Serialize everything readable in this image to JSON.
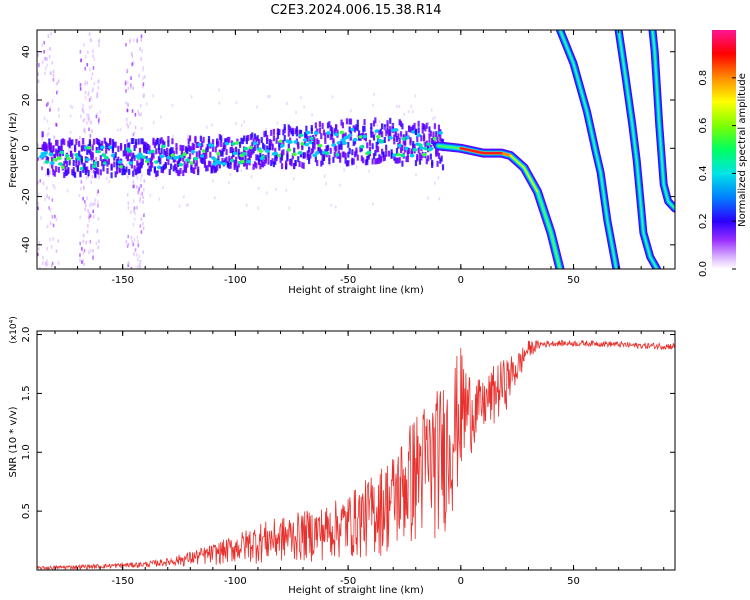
{
  "title": "C2E3.2024.006.15.38.R14",
  "colors": {
    "snr_line": "#e8302c",
    "axis": "#000000",
    "background": "#ffffff"
  },
  "colorbar": {
    "label": "Normalized spectral amplitude",
    "ticks": [
      "0.0",
      "0.2",
      "0.4",
      "0.6",
      "0.8"
    ],
    "tick_values": [
      0.0,
      0.2,
      0.4,
      0.6,
      0.8
    ],
    "range": [
      0,
      1
    ]
  },
  "chart_data": [
    {
      "type": "heatmap",
      "name": "spectrogram",
      "title": "C2E3.2024.006.15.38.R14",
      "xlabel": "Height of straight line (km)",
      "ylabel": "Frequency (Hz)",
      "xlim": [
        -188,
        95
      ],
      "ylim": [
        -50,
        49
      ],
      "xticks": [
        -150,
        -100,
        -50,
        0,
        50
      ],
      "xtick_labels": [
        "-150",
        "-100",
        "-50",
        "0",
        "50"
      ],
      "yticks": [
        -40,
        -20,
        0,
        20,
        40
      ],
      "ytick_labels": [
        "-40",
        "-20",
        "0",
        "20",
        "40"
      ],
      "traces": [
        {
          "name": "main",
          "points": [
            [
              -185,
              -4
            ],
            [
              -150,
              -4
            ],
            [
              -120,
              -3
            ],
            [
              -100,
              -2
            ],
            [
              -80,
              0
            ],
            [
              -60,
              2
            ],
            [
              -40,
              3
            ],
            [
              -20,
              2
            ],
            [
              -10,
              1
            ],
            [
              0,
              0
            ],
            [
              10,
              -2
            ],
            [
              18,
              -2
            ],
            [
              22,
              -3
            ],
            [
              28,
              -8
            ],
            [
              34,
              -18
            ],
            [
              40,
              -35
            ],
            [
              44,
              -50
            ]
          ]
        },
        {
          "name": "fold1",
          "points": [
            [
              44,
              49
            ],
            [
              50,
              35
            ],
            [
              56,
              15
            ],
            [
              60,
              -2
            ],
            [
              62,
              -10
            ],
            [
              65,
              -30
            ],
            [
              69,
              -50
            ]
          ]
        },
        {
          "name": "fold2",
          "points": [
            [
              70,
              49
            ],
            [
              73,
              30
            ],
            [
              76,
              10
            ],
            [
              78,
              -5
            ],
            [
              80,
              -25
            ],
            [
              81,
              -35
            ],
            [
              84,
              -45
            ],
            [
              87,
              -50
            ]
          ]
        },
        {
          "name": "fold3",
          "points": [
            [
              85,
              49
            ],
            [
              86,
              40
            ],
            [
              88,
              10
            ],
            [
              90,
              -15
            ],
            [
              92,
              -22
            ],
            [
              95,
              -25
            ]
          ]
        }
      ]
    },
    {
      "type": "line",
      "name": "snr",
      "xlabel": "Height of straight line (km)",
      "ylabel": "SNR (10 * v/v)",
      "y_multiplier": "(x10⁴)",
      "xlim": [
        -188,
        95
      ],
      "ylim": [
        0,
        2.03
      ],
      "xticks": [
        -150,
        -100,
        -50,
        0,
        50
      ],
      "xtick_labels": [
        "-150",
        "-100",
        "-50",
        "0",
        "50"
      ],
      "yticks": [
        0.5,
        1.0,
        1.5,
        2.0
      ],
      "ytick_labels": [
        "0.5",
        "1.0",
        "1.5",
        "2.0"
      ],
      "envelope": {
        "x": [
          -188,
          -160,
          -140,
          -130,
          -120,
          -110,
          -100,
          -90,
          -80,
          -70,
          -60,
          -50,
          -40,
          -30,
          -20,
          -10,
          -5,
          0,
          5,
          10,
          15,
          20,
          25,
          30,
          35,
          40,
          50,
          60,
          70,
          80,
          95
        ],
        "min": [
          0.0,
          0.01,
          0.02,
          0.03,
          0.03,
          0.04,
          0.05,
          0.05,
          0.05,
          0.06,
          0.07,
          0.08,
          0.09,
          0.12,
          0.18,
          0.25,
          0.35,
          0.7,
          1.0,
          1.15,
          1.2,
          1.35,
          1.55,
          1.8,
          1.88,
          1.9,
          1.9,
          1.9,
          1.89,
          1.88,
          1.87
        ],
        "max": [
          0.03,
          0.05,
          0.07,
          0.1,
          0.16,
          0.22,
          0.3,
          0.4,
          0.45,
          0.5,
          0.55,
          0.65,
          0.8,
          1.0,
          1.35,
          1.55,
          1.7,
          1.9,
          1.65,
          1.6,
          1.75,
          1.8,
          1.85,
          1.95,
          1.95,
          1.95,
          1.95,
          1.95,
          1.94,
          1.93,
          1.93
        ]
      }
    }
  ]
}
